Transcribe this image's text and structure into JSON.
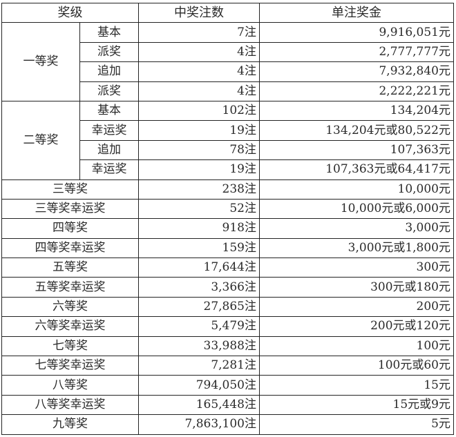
{
  "headers": {
    "level": "奖级",
    "count": "中奖注数",
    "prize": "单注奖金"
  },
  "groups": [
    {
      "name": "一等奖",
      "rows": [
        {
          "sub": "基本",
          "count": "7注",
          "prize": "9,916,051元"
        },
        {
          "sub": "派奖",
          "count": "4注",
          "prize": "2,777,777元"
        },
        {
          "sub": "追加",
          "count": "4注",
          "prize": "7,932,840元"
        },
        {
          "sub": "派奖",
          "count": "4注",
          "prize": "2,222,221元"
        }
      ]
    },
    {
      "name": "二等奖",
      "rows": [
        {
          "sub": "基本",
          "count": "102注",
          "prize": "134,204元"
        },
        {
          "sub": "幸运奖",
          "count": "19注",
          "prize": "134,204元或80,522元"
        },
        {
          "sub": "追加",
          "count": "78注",
          "prize": "107,363元"
        },
        {
          "sub": "幸运奖",
          "count": "19注",
          "prize": "107,363元或64,417元"
        }
      ]
    }
  ],
  "rows": [
    {
      "level": "三等奖",
      "count": "238注",
      "prize": "10,000元"
    },
    {
      "level": "三等奖幸运奖",
      "count": "52注",
      "prize": "10,000元或6,000元"
    },
    {
      "level": "四等奖",
      "count": "918注",
      "prize": "3,000元"
    },
    {
      "level": "四等奖幸运奖",
      "count": "159注",
      "prize": "3,000元或1,800元"
    },
    {
      "level": "五等奖",
      "count": "17,644注",
      "prize": "300元"
    },
    {
      "level": "五等奖幸运奖",
      "count": "3,366注",
      "prize": "300元或180元"
    },
    {
      "level": "六等奖",
      "count": "27,865注",
      "prize": "200元"
    },
    {
      "level": "六等奖幸运奖",
      "count": "5,479注",
      "prize": "200元或120元"
    },
    {
      "level": "七等奖",
      "count": "33,988注",
      "prize": "100元"
    },
    {
      "level": "七等奖幸运奖",
      "count": "7,281注",
      "prize": "100元或60元"
    },
    {
      "level": "八等奖",
      "count": "794,050注",
      "prize": "15元"
    },
    {
      "level": "八等奖幸运奖",
      "count": "165,448注",
      "prize": "15元或9元"
    },
    {
      "level": "九等奖",
      "count": "7,863,100注",
      "prize": "5元"
    }
  ]
}
